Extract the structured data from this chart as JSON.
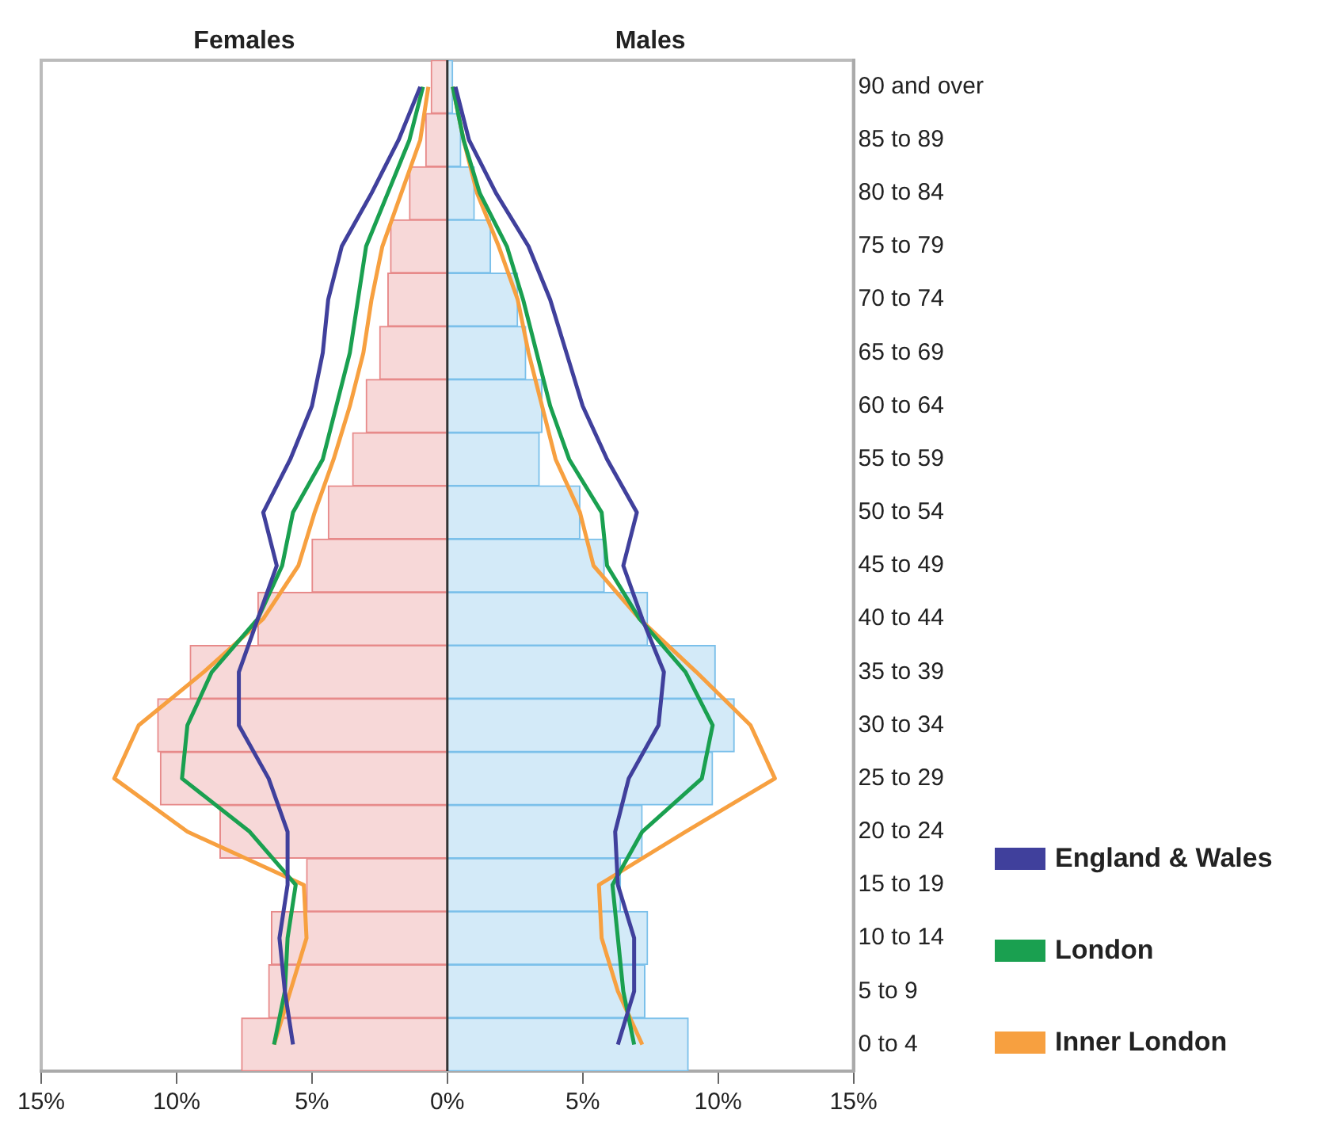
{
  "chart_data": {
    "type": "bar",
    "orientation": "horizontal",
    "categories": [
      "90 and over",
      "85 to 89",
      "80 to 84",
      "75 to 79",
      "70 to 74",
      "65 to 69",
      "60 to 64",
      "55 to 59",
      "50 to 54",
      "45 to 49",
      "40 to 44",
      "35 to 39",
      "30 to 34",
      "25 to 29",
      "20 to 24",
      "15 to 19",
      "10 to 14",
      "5 to 9",
      "0 to 4"
    ],
    "xlim": [
      -15,
      15
    ],
    "xticks": [
      {
        "value": -15,
        "label": "15%"
      },
      {
        "value": -10,
        "label": "10%"
      },
      {
        "value": -5,
        "label": "5%"
      },
      {
        "value": 0,
        "label": "0%"
      },
      {
        "value": 5,
        "label": "5%"
      },
      {
        "value": 10,
        "label": "10%"
      },
      {
        "value": 15,
        "label": "15%"
      }
    ],
    "annotations": [
      "Females",
      "Males"
    ],
    "grid": false,
    "legend": "bottom right",
    "marker": "none",
    "stacked": true,
    "ref_lines": [
      {
        "axis": "x",
        "value": 0,
        "color": "#333333"
      }
    ],
    "series": [
      {
        "color": "#f7d8d8",
        "values": [
          -0.6,
          -0.8,
          -1.4,
          -2.1,
          -2.2,
          -2.5,
          -3.0,
          -3.5,
          -4.4,
          -5.0,
          -7.0,
          -9.5,
          -10.7,
          -10.6,
          -8.4,
          -5.2,
          -6.5,
          -6.6,
          -7.6
        ]
      },
      {
        "color": "#d3eaf8",
        "values": [
          0.2,
          0.5,
          1.0,
          1.6,
          2.6,
          2.9,
          3.5,
          3.4,
          4.9,
          5.8,
          7.4,
          9.9,
          10.6,
          9.8,
          7.2,
          6.4,
          7.4,
          7.3,
          8.9
        ]
      },
      {
        "name": "England & Wales",
        "type": "line",
        "color": "#40409c",
        "values": [
          -1.0,
          -1.8,
          -2.8,
          -3.9,
          -4.4,
          -4.6,
          -5.0,
          -5.8,
          -6.8,
          -6.3,
          -7.0,
          -7.7,
          -7.7,
          -6.6,
          -5.9,
          -5.9,
          -6.2,
          -6.0,
          -5.7
        ]
      },
      {
        "name": "London",
        "type": "line",
        "color": "#1aa050",
        "values": [
          -0.9,
          -1.4,
          -2.2,
          -3.0,
          -3.3,
          -3.6,
          -4.1,
          -4.6,
          -5.7,
          -6.1,
          -7.0,
          -8.7,
          -9.6,
          -9.8,
          -7.3,
          -5.6,
          -5.9,
          -6.0,
          -6.4
        ]
      },
      {
        "name": "Inner London",
        "type": "line",
        "color": "#f7a040",
        "values": [
          -0.7,
          -1.0,
          -1.7,
          -2.4,
          -2.8,
          -3.1,
          -3.6,
          -4.2,
          -4.9,
          -5.5,
          -6.8,
          -9.0,
          -11.4,
          -12.3,
          -9.6,
          -5.3,
          -5.2,
          -5.8,
          -6.4
        ]
      },
      {
        "type": "line",
        "color": "#40409c",
        "values": [
          0.3,
          0.8,
          1.8,
          3.0,
          3.8,
          4.4,
          5.0,
          5.9,
          7.0,
          6.5,
          7.2,
          8.0,
          7.8,
          6.7,
          6.2,
          6.3,
          6.9,
          6.9,
          6.3
        ]
      },
      {
        "type": "line",
        "color": "#1aa050",
        "values": [
          0.2,
          0.6,
          1.2,
          2.2,
          2.8,
          3.3,
          3.8,
          4.5,
          5.7,
          5.9,
          7.1,
          8.8,
          9.8,
          9.4,
          7.2,
          6.1,
          6.3,
          6.5,
          6.9
        ]
      },
      {
        "type": "line",
        "color": "#f7a040",
        "values": [
          0.2,
          0.6,
          1.1,
          1.9,
          2.6,
          3.0,
          3.5,
          4.0,
          4.9,
          5.4,
          7.1,
          9.2,
          11.2,
          12.1,
          8.8,
          5.6,
          5.7,
          6.3,
          7.2
        ]
      }
    ]
  }
}
